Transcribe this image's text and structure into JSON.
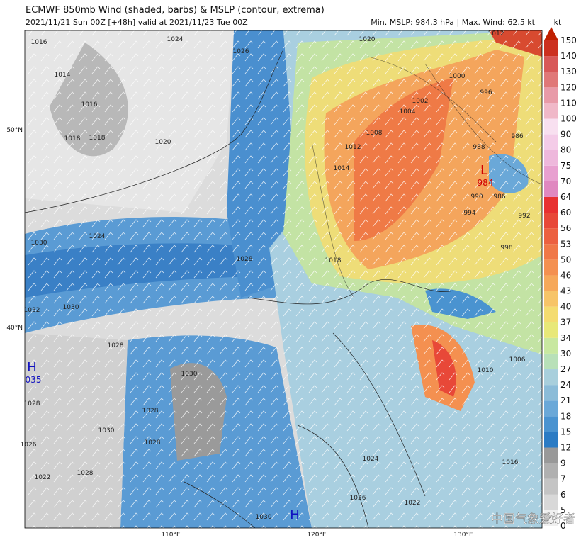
{
  "header": {
    "title": "ECMWF 850mb Wind (shaded, barbs) & MSLP (contour, extrema)",
    "subtitle": "2021/11/21 Sun 00Z [+48h] valid at 2021/11/23 Tue 00Z",
    "stats": "Min. MSLP: 984.3 hPa | Max. Wind: 62.5 kt"
  },
  "colorbar": {
    "unit": "kt",
    "ticks": [
      "0",
      "5",
      "6",
      "7",
      "9",
      "12",
      "15",
      "18",
      "21",
      "24",
      "27",
      "30",
      "34",
      "37",
      "40",
      "43",
      "46",
      "50",
      "53",
      "56",
      "60",
      "64",
      "70",
      "75",
      "80",
      "90",
      "100",
      "110",
      "120",
      "130",
      "140",
      "150"
    ],
    "colors": [
      "#f0f0f0",
      "#d8d8d8",
      "#c4c4c4",
      "#b0b0b0",
      "#999999",
      "#2b7bc4",
      "#4a93d0",
      "#6aa8d8",
      "#8bbcd8",
      "#a8cfdc",
      "#b8e0b8",
      "#c8e8a0",
      "#e8e878",
      "#f4dc70",
      "#f7c468",
      "#f6a85a",
      "#f49050",
      "#f07848",
      "#ec6040",
      "#e84838",
      "#e83030",
      "#e088c0",
      "#e8a0d0",
      "#eeb8dc",
      "#f4cce8",
      "#f8e0f0",
      "#f0b8c8",
      "#e89aa8",
      "#e07878",
      "#d85858",
      "#cc3020"
    ]
  },
  "map": {
    "lat_labels": [
      "50°N",
      "40°N"
    ],
    "lon_labels": [
      "110°E",
      "120°E",
      "130°E"
    ],
    "systems": [
      {
        "letter": "L",
        "value": "984"
      },
      {
        "letter": "H",
        "value": "035"
      },
      {
        "letter": "H"
      }
    ],
    "contour_labels": [
      "1016",
      "1014",
      "1016",
      "1018",
      "1018",
      "1020",
      "1024",
      "1026",
      "1020",
      "1012",
      "1000",
      "996",
      "1008",
      "1012",
      "1014",
      "1004",
      "1002",
      "988",
      "986",
      "986",
      "990",
      "994",
      "992",
      "998",
      "1018",
      "1028",
      "1024",
      "1030",
      "1030",
      "1032",
      "1028",
      "1030",
      "1028",
      "1028",
      "1030",
      "1028",
      "1026",
      "1022",
      "1028",
      "1010",
      "1006",
      "1024",
      "1026",
      "1022",
      "1016",
      "1030"
    ]
  },
  "watermark": "中国气象爱好者"
}
